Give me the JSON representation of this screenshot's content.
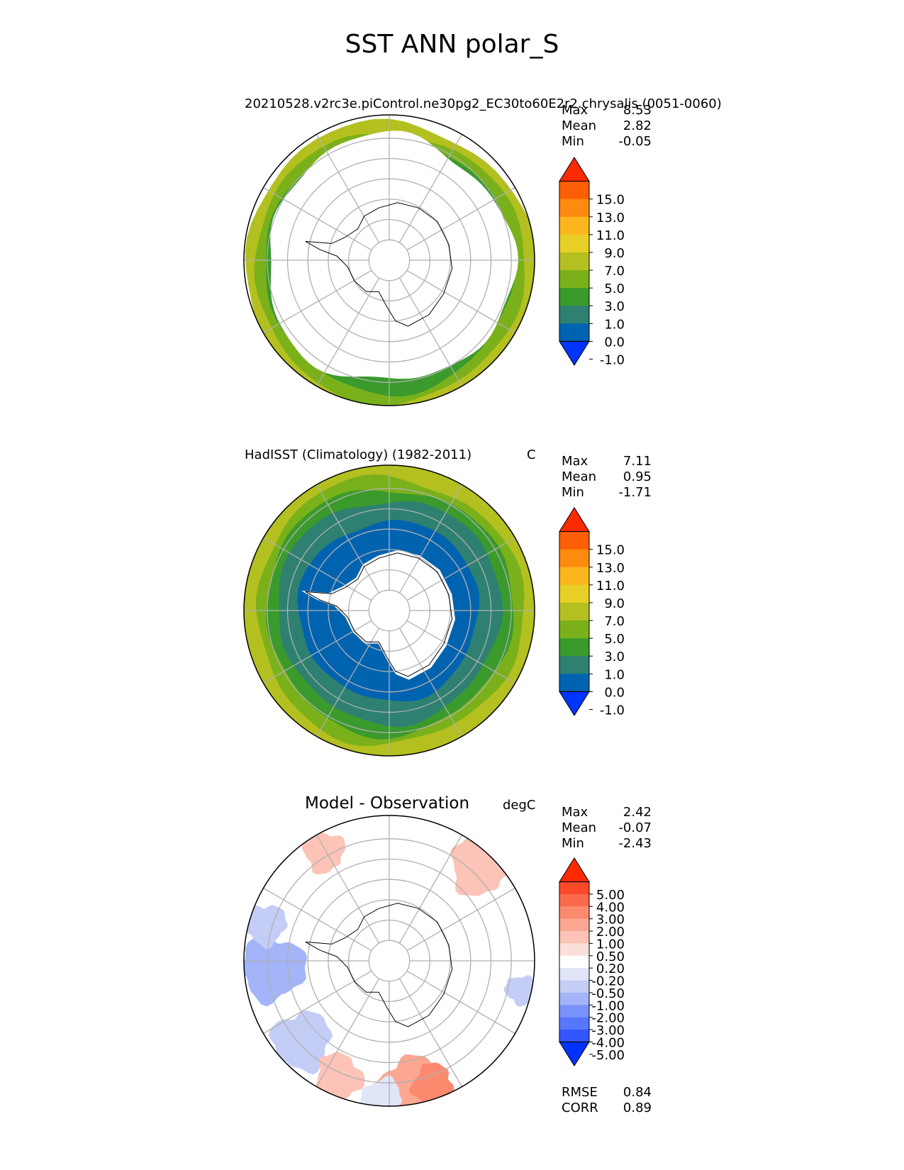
{
  "title": "SST ANN polar_S",
  "panels": [
    {
      "id": "test",
      "title_left": "20210528.v2rc3e.piControl.ne30pg2_EC30to60E2r2.chrysalis (0051-0060)",
      "units": "C",
      "stats": [
        {
          "label": "Max",
          "value": "8.53"
        },
        {
          "label": "Mean",
          "value": "2.82"
        },
        {
          "label": "Min",
          "value": "-0.05"
        }
      ],
      "colorbar_ticks": [
        "15.0",
        "13.0",
        "11.0",
        "9.0",
        "7.0",
        "5.0",
        "3.0",
        "1.0",
        "0.0",
        "-1.0"
      ]
    },
    {
      "id": "reference",
      "title_left": "HadISST (Climatology) (1982-2011)",
      "units": "C",
      "stats": [
        {
          "label": "Max",
          "value": "7.11"
        },
        {
          "label": "Mean",
          "value": "0.95"
        },
        {
          "label": "Min",
          "value": "-1.71"
        }
      ],
      "colorbar_ticks": [
        "15.0",
        "13.0",
        "11.0",
        "9.0",
        "7.0",
        "5.0",
        "3.0",
        "1.0",
        "0.0",
        "-1.0"
      ]
    },
    {
      "id": "diff",
      "title_center": "Model - Observation",
      "units": "degC",
      "stats": [
        {
          "label": "Max",
          "value": "2.42"
        },
        {
          "label": "Mean",
          "value": "-0.07"
        },
        {
          "label": "Min",
          "value": "-2.43"
        }
      ],
      "colorbar_ticks": [
        "5.00",
        "4.00",
        "3.00",
        "2.00",
        "1.00",
        "0.50",
        "0.20",
        "-0.20",
        "-0.50",
        "-1.00",
        "-2.00",
        "-3.00",
        "-4.00",
        "-5.00"
      ],
      "metrics": [
        {
          "label": "RMSE",
          "value": "0.84"
        },
        {
          "label": "CORR",
          "value": "0.89"
        }
      ]
    }
  ],
  "chart_data": [
    {
      "type": "heatmap",
      "title": "20210528.v2rc3e.piControl.ne30pg2_EC30to60E2r2.chrysalis (0051-0060)",
      "variable": "SST",
      "season": "ANN",
      "region": "polar_S",
      "units": "C",
      "stats": {
        "max": 8.53,
        "mean": 2.82,
        "min": -0.05
      },
      "levels": [
        -1.0,
        0.0,
        1.0,
        3.0,
        5.0,
        7.0,
        9.0,
        11.0,
        13.0,
        15.0
      ],
      "colors": [
        "#0035ff",
        "#0063b0",
        "#2e8071",
        "#3a9a2c",
        "#7ab11b",
        "#b4c020",
        "#e8cf26",
        "#fdb51e",
        "#fc8b10",
        "#fc5f06",
        "#fc2a00"
      ],
      "projection": "south-polar-stereographic",
      "grid": true
    },
    {
      "type": "heatmap",
      "title": "HadISST (Climatology) (1982-2011)",
      "variable": "SST",
      "season": "ANN",
      "region": "polar_S",
      "units": "C",
      "stats": {
        "max": 7.11,
        "mean": 0.95,
        "min": -1.71
      },
      "levels": [
        -1.0,
        0.0,
        1.0,
        3.0,
        5.0,
        7.0,
        9.0,
        11.0,
        13.0,
        15.0
      ],
      "colors": [
        "#0035ff",
        "#0063b0",
        "#2e8071",
        "#3a9a2c",
        "#7ab11b",
        "#b4c020",
        "#e8cf26",
        "#fdb51e",
        "#fc8b10",
        "#fc5f06",
        "#fc2a00"
      ],
      "projection": "south-polar-stereographic",
      "grid": true
    },
    {
      "type": "heatmap",
      "title": "Model - Observation",
      "variable": "SST",
      "season": "ANN",
      "region": "polar_S",
      "units": "degC",
      "stats": {
        "max": 2.42,
        "mean": -0.07,
        "min": -2.43
      },
      "metrics": {
        "rmse": 0.84,
        "corr": 0.89
      },
      "levels": [
        -5.0,
        -4.0,
        -3.0,
        -2.0,
        -1.0,
        -0.5,
        -0.2,
        0.2,
        0.5,
        1.0,
        2.0,
        3.0,
        4.0,
        5.0
      ],
      "colors": [
        "#0032ff",
        "#3356ff",
        "#5777ff",
        "#7a92fb",
        "#a3b4f8",
        "#c4cdf6",
        "#e1e5f8",
        "#ffffff",
        "#fbe0da",
        "#fcc3b6",
        "#fca792",
        "#fc8a6f",
        "#fc6a4c",
        "#fc4a28",
        "#fc2a00"
      ],
      "projection": "south-polar-stereographic",
      "grid": true
    }
  ]
}
